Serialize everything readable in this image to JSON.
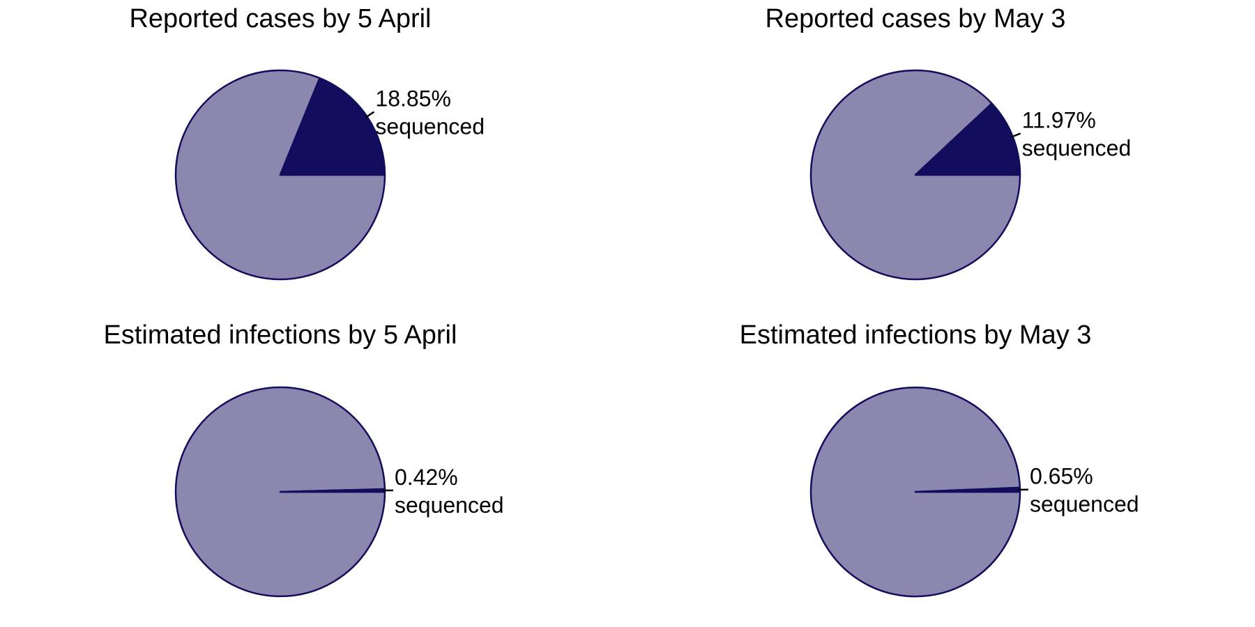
{
  "colors": {
    "sequenced": "#120d5c",
    "remaining": "#8b87ae",
    "outline": "#120d5c",
    "leader": "#000000"
  },
  "chart_data": [
    {
      "type": "pie",
      "title": "Reported cases by 5 April",
      "slices": [
        {
          "label": "sequenced",
          "value": 18.85,
          "display": "18.85%"
        },
        {
          "label": "",
          "value": 81.15
        }
      ]
    },
    {
      "type": "pie",
      "title": "Reported cases by May 3",
      "slices": [
        {
          "label": "sequenced",
          "value": 11.97,
          "display": "11.97%"
        },
        {
          "label": "",
          "value": 88.03
        }
      ]
    },
    {
      "type": "pie",
      "title": "Estimated infections by 5 April",
      "slices": [
        {
          "label": "sequenced",
          "value": 0.42,
          "display": "0.42%"
        },
        {
          "label": "",
          "value": 99.58
        }
      ]
    },
    {
      "type": "pie",
      "title": "Estimated infections by May 3",
      "slices": [
        {
          "label": "sequenced",
          "value": 0.65,
          "display": "0.65%"
        },
        {
          "label": "",
          "value": 99.35
        }
      ]
    }
  ]
}
